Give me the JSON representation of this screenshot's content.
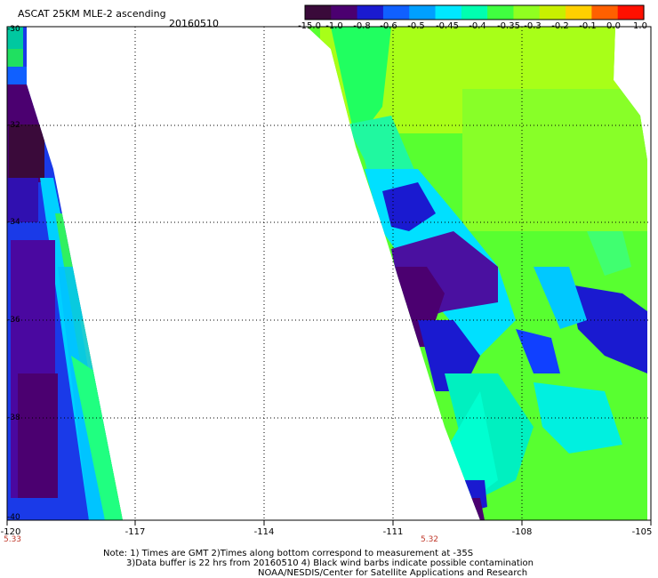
{
  "header": {
    "title": "ASCAT 25KM MLE-2 ascending",
    "date": "20160510"
  },
  "colorbar": {
    "labels": [
      "-15.0",
      "-1.0",
      "-0.8",
      "-0.6",
      "-0.5",
      "-0.45",
      "-0.4",
      "-0.35",
      "-0.3",
      "-0.2",
      "-0.1",
      "0.0",
      "1.0"
    ],
    "colors": [
      "#3a0a3a",
      "#4b0070",
      "#1a1ad0",
      "#1060ff",
      "#00a0ff",
      "#00e8ff",
      "#00ffb0",
      "#40ff40",
      "#90ff20",
      "#c8f000",
      "#ffd000",
      "#ff6000",
      "#ff1000"
    ]
  },
  "axes": {
    "lon_labels": [
      "-120",
      "-117",
      "-114",
      "-111",
      "-108",
      "-105"
    ],
    "lat_labels": [
      "-30",
      "-32",
      "-34",
      "-36",
      "-38",
      "-40"
    ],
    "time_labels": [
      "5.33",
      "5.32"
    ]
  },
  "notes": {
    "line1": "Note: 1) Times are GMT 2)Times along bottom correspond to measurement at -35S",
    "line2": "3)Data buffer is 22 hrs from 20160510 4) Black wind barbs indicate possible contamination",
    "line3": "NOAA/NESDIS/Center for Satellite Applications and Research"
  }
}
